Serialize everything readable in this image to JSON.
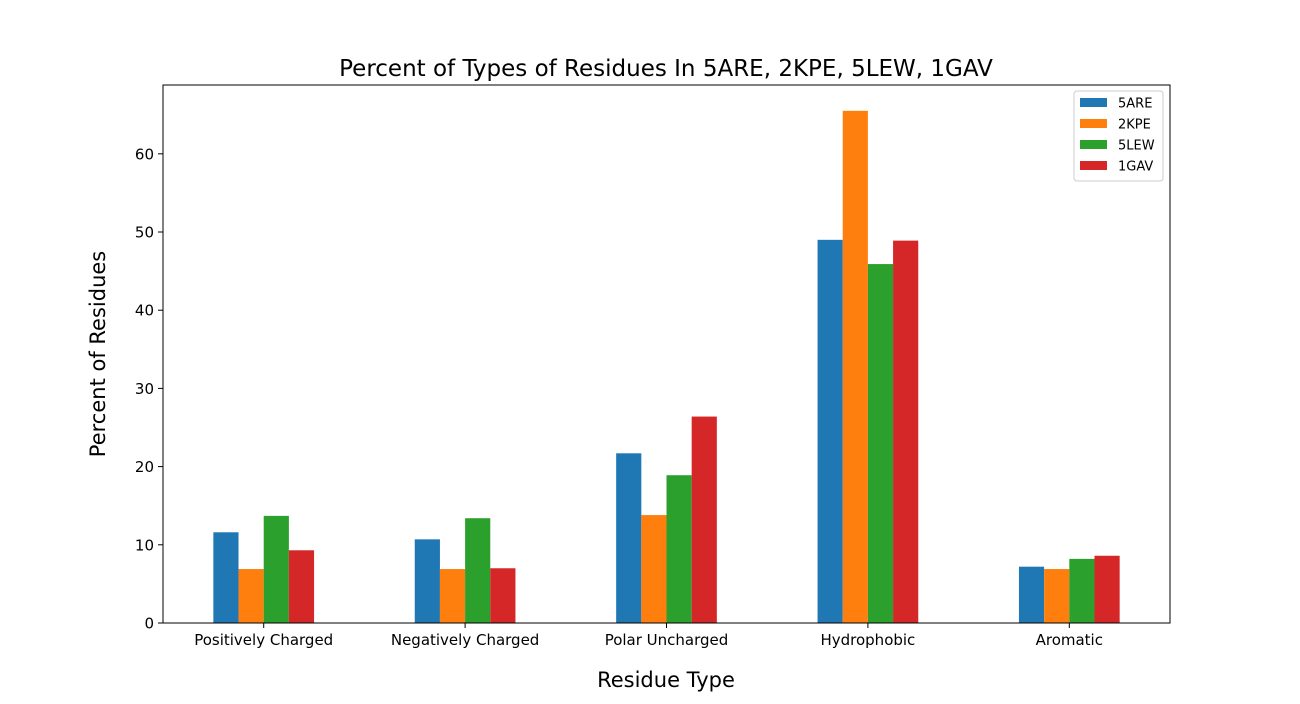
{
  "chart_data": {
    "type": "bar",
    "title": "Percent of Types of Residues In 5ARE, 2KPE, 5LEW, 1GAV",
    "xlabel": "Residue Type",
    "ylabel": "Percent of Residues",
    "categories": [
      "Positively Charged",
      "Negatively Charged",
      "Polar Uncharged",
      "Hydrophobic",
      "Aromatic"
    ],
    "series": [
      {
        "name": "5ARE",
        "color": "#1f77b4",
        "values": [
          11.6,
          10.7,
          21.7,
          49.0,
          7.2
        ]
      },
      {
        "name": "2KPE",
        "color": "#ff7f0e",
        "values": [
          6.9,
          6.9,
          13.8,
          65.5,
          6.9
        ]
      },
      {
        "name": "5LEW",
        "color": "#2ca02c",
        "values": [
          13.7,
          13.4,
          18.9,
          45.9,
          8.2
        ]
      },
      {
        "name": "1GAV",
        "color": "#d62728",
        "values": [
          9.3,
          7.0,
          26.4,
          48.9,
          8.6
        ]
      }
    ],
    "ylim": [
      0,
      68.8
    ],
    "yticks": [
      0,
      10,
      20,
      30,
      40,
      50,
      60
    ],
    "legend_position": "top-right",
    "grid": false
  }
}
